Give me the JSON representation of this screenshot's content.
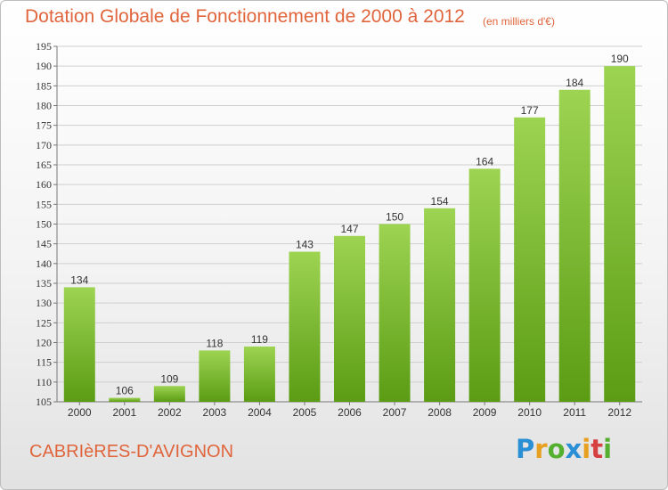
{
  "title": "Dotation Globale de Fonctionnement de 2000 à 2012",
  "unit_note": "(en milliers d'€)",
  "commune": "CABRIèRES-D'AVIGNON",
  "logo": {
    "text": "Proxiti",
    "letters": [
      {
        "ch": "P",
        "color": "#2b8fd6"
      },
      {
        "ch": "r",
        "color": "#e8a020"
      },
      {
        "ch": "o",
        "color": "#55b030"
      },
      {
        "ch": "x",
        "color": "#2b8fd6"
      },
      {
        "ch": "i",
        "color": "#e8a020"
      },
      {
        "ch": "t",
        "color": "#d64040"
      },
      {
        "ch": "i",
        "color": "#55b030"
      }
    ]
  },
  "colors": {
    "accent": "#e0653c",
    "bar_top": "#9dd452",
    "bar_bottom": "#5b9c14",
    "grid": "#cfcfcf"
  },
  "chart_data": {
    "type": "bar",
    "title": "Dotation Globale de Fonctionnement de 2000 à 2012",
    "categories": [
      "2000",
      "2001",
      "2002",
      "2003",
      "2004",
      "2005",
      "2006",
      "2007",
      "2008",
      "2009",
      "2010",
      "2011",
      "2012"
    ],
    "values": [
      134,
      106,
      109,
      118,
      119,
      143,
      147,
      150,
      154,
      164,
      177,
      184,
      190
    ],
    "ylim": [
      105,
      195
    ],
    "yticks": [
      105,
      110,
      115,
      120,
      125,
      130,
      135,
      140,
      145,
      150,
      155,
      160,
      165,
      170,
      175,
      180,
      185,
      190,
      195
    ],
    "grid": true,
    "xlabel": "",
    "ylabel": ""
  }
}
